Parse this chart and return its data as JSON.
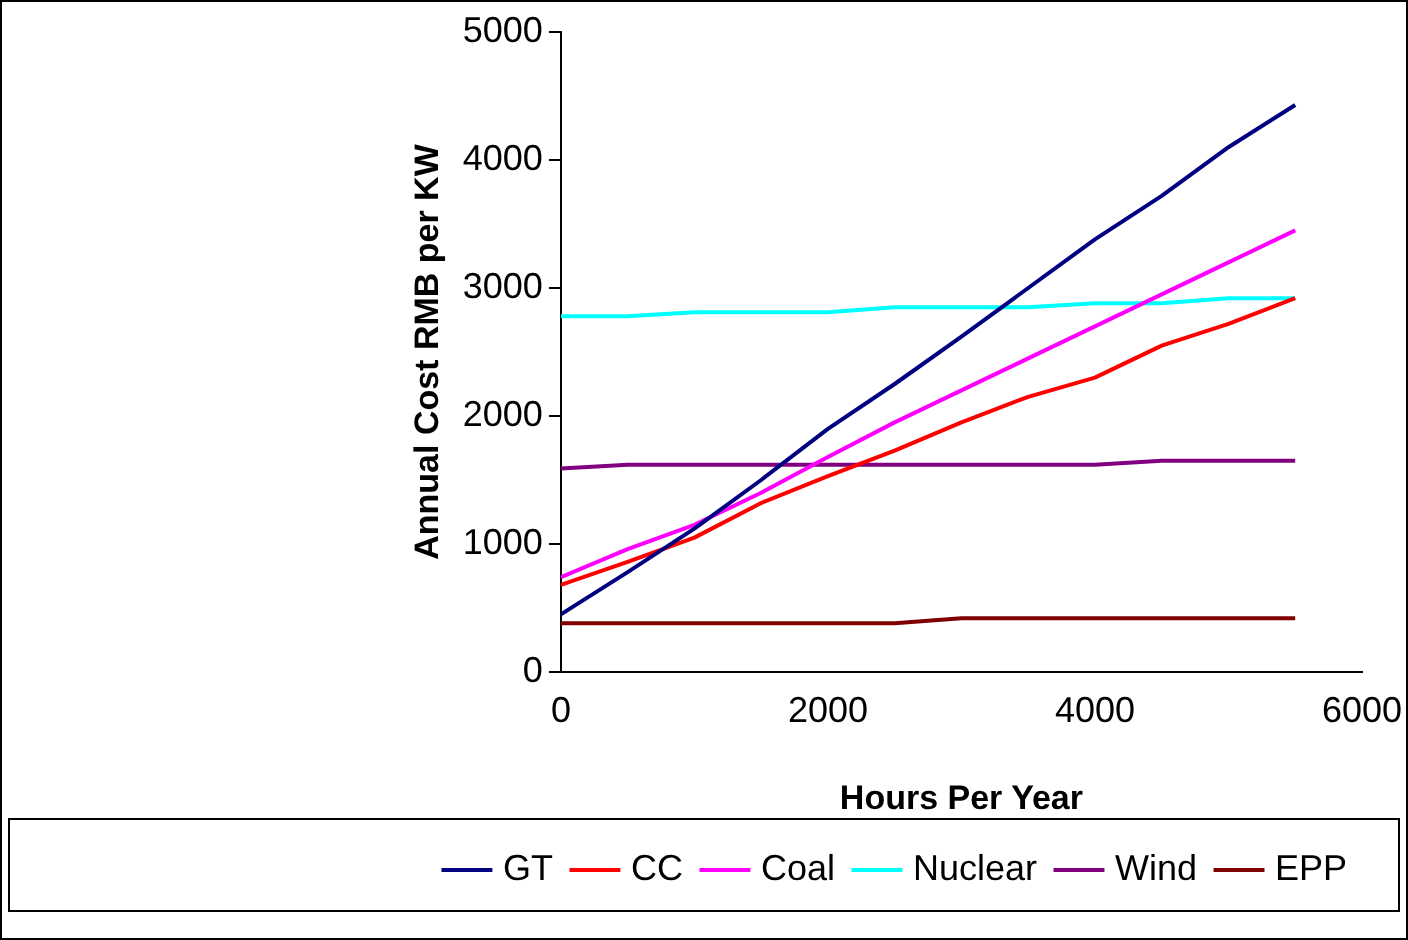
{
  "chart_data": {
    "type": "line",
    "xlabel": "Hours Per Year",
    "ylabel": "Annual Cost RMB per KW",
    "x": [
      0,
      500,
      1000,
      1500,
      2000,
      2500,
      3000,
      3500,
      4000,
      4500,
      5000,
      5500
    ],
    "xlim": [
      0,
      6000
    ],
    "xticks": [
      0,
      2000,
      4000,
      6000
    ],
    "ylim": [
      0,
      5000
    ],
    "yticks": [
      0,
      1000,
      2000,
      3000,
      4000,
      5000
    ],
    "grid": false,
    "legend": "bottom",
    "marker": "none",
    "line_style": "solid",
    "series": [
      {
        "name": "GT",
        "color": "#000080",
        "values": [
          450,
          780,
          1120,
          1500,
          1900,
          2250,
          2620,
          3000,
          3380,
          3720,
          4100,
          4430
        ]
      },
      {
        "name": "CC",
        "color": "#ff0000",
        "values": [
          680,
          860,
          1050,
          1320,
          1530,
          1730,
          1950,
          2150,
          2300,
          2550,
          2720,
          2920
        ]
      },
      {
        "name": "Coal",
        "color": "#ff00ff",
        "values": [
          740,
          960,
          1150,
          1400,
          1680,
          1950,
          2200,
          2450,
          2700,
          2950,
          3200,
          3450
        ]
      },
      {
        "name": "Nuclear",
        "color": "#00ffff",
        "values": [
          2780,
          2780,
          2810,
          2810,
          2810,
          2850,
          2850,
          2850,
          2880,
          2880,
          2920,
          2920
        ]
      },
      {
        "name": "Wind",
        "color": "#800080",
        "values": [
          1590,
          1620,
          1620,
          1620,
          1620,
          1620,
          1620,
          1620,
          1620,
          1650,
          1650,
          1650
        ]
      },
      {
        "name": "EPP",
        "color": "#800000",
        "values": [
          380,
          380,
          380,
          380,
          380,
          380,
          420,
          420,
          420,
          420,
          420,
          420
        ]
      }
    ]
  }
}
